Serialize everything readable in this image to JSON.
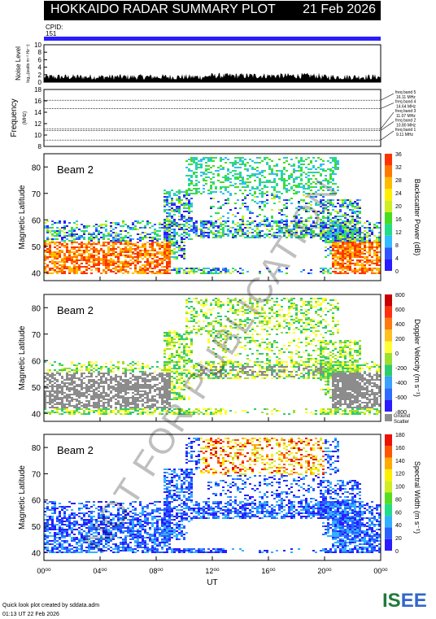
{
  "header": {
    "title": "HOKKAIDO RADAR SUMMARY PLOT",
    "date": "21 Feb 2026"
  },
  "cpid": {
    "label": "CPID:",
    "value": "151"
  },
  "noise_panel": {
    "ylabel": "Noise Level",
    "ylabel2": "log₁₀(watts m⁻² Hz⁻¹)",
    "ticks": [
      "10",
      "8",
      "6",
      "4",
      "2",
      "0"
    ]
  },
  "freq_panel": {
    "ylabel": "Frequency",
    "unit": "(MHz)",
    "ticks": [
      "18",
      "16",
      "14",
      "12",
      "10",
      "8"
    ],
    "bands": [
      {
        "label": "freq band 5",
        "value": "16.11 MHz"
      },
      {
        "label": "freq band 4",
        "value": "14.64 MHz"
      },
      {
        "label": "freq band 3",
        "value": "11.07 MHz"
      },
      {
        "label": "freq band 2",
        "value": "10.80 MHz"
      },
      {
        "label": "freq band 1",
        "value": "9.11 MHz"
      }
    ]
  },
  "beam_label": "Beam  2",
  "panels": [
    {
      "ylabel": "Magnetic Latitude",
      "cbar_label": "Backscatter Power (dB)",
      "cbar_ticks": [
        "36",
        "32",
        "28",
        "24",
        "20",
        "16",
        "12",
        "8",
        "4",
        "0"
      ]
    },
    {
      "ylabel": "Magnetic Latitude",
      "cbar_label": "Doppler Velocity (m s⁻¹)",
      "cbar_ticks": [
        "800",
        "600",
        "400",
        "200",
        "0",
        "-200",
        "-400",
        "-600",
        "-800"
      ],
      "ground_label": "Ground",
      "ground_label2": "Scatter"
    },
    {
      "ylabel": "Magnetic Latitude",
      "cbar_label": "Spectral Width (m s⁻¹)",
      "cbar_ticks": [
        "180",
        "160",
        "140",
        "120",
        "100",
        "80",
        "60",
        "40",
        "20",
        "0"
      ]
    }
  ],
  "lat_ticks": [
    "80",
    "70",
    "60",
    "50",
    "40"
  ],
  "time_ticks": [
    "00⁰⁰",
    "04⁰⁰",
    "08⁰⁰",
    "12⁰⁰",
    "16⁰⁰",
    "20⁰⁰",
    "00⁰⁰"
  ],
  "xlabel": "UT",
  "footer": {
    "line1": "Quick look plot created by sddata.adm",
    "line2": "01:13 UT 22 Feb 2026"
  },
  "logo": {
    "part1": "IS",
    "part2": "EE"
  },
  "watermark": "NOT FOR PUBLICATION",
  "colors": {
    "header_bg": "#000000",
    "cpid_bar": "#2a1cff",
    "ground": "#8c8c8c"
  },
  "chart_data": {
    "type": "heatmap",
    "x_range_hours": [
      0,
      24
    ],
    "lat_range": [
      37,
      85
    ],
    "freq_range": [
      8,
      18
    ],
    "noise_range": [
      0,
      10
    ],
    "freq_lines_mhz": [
      16.11,
      14.64,
      11.07,
      10.8,
      9.11
    ]
  }
}
